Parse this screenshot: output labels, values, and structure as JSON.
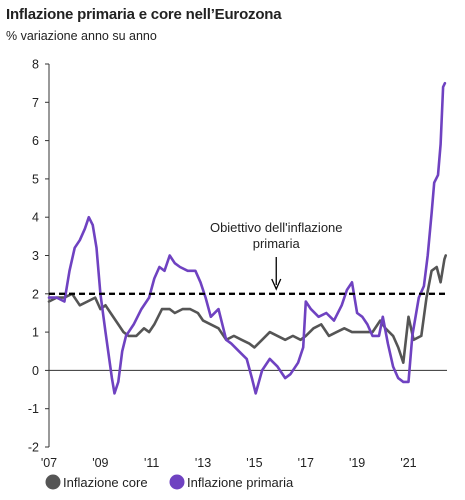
{
  "colors": {
    "core": "#555555",
    "headline": "#6f42c1",
    "target": "#000000"
  },
  "chart_data": {
    "type": "line",
    "title": "Inflazione primaria e core nell’Eurozona",
    "subtitle": "% variazione anno su anno",
    "xlabel": "",
    "ylabel": "",
    "xlim": [
      2007.0,
      2022.5
    ],
    "ylim": [
      -2,
      8
    ],
    "yticks": [
      "-2",
      "-1",
      "0",
      "1",
      "2",
      "3",
      "4",
      "5",
      "6",
      "7",
      "8"
    ],
    "xticks": [
      {
        "x": 2007.0,
        "label": "'07"
      },
      {
        "x": 2009.0,
        "label": "'09"
      },
      {
        "x": 2011.0,
        "label": "'11"
      },
      {
        "x": 2013.0,
        "label": "'13"
      },
      {
        "x": 2015.0,
        "label": "'15"
      },
      {
        "x": 2017.0,
        "label": "'17"
      },
      {
        "x": 2019.0,
        "label": "'19"
      },
      {
        "x": 2021.0,
        "label": "'21"
      }
    ],
    "reference_line": {
      "y": 2,
      "style": "dashed"
    },
    "annotation": {
      "lines": [
        "Obiettivo dell'inflazione",
        "primaria"
      ],
      "x": 2015.85
    },
    "legend": {
      "position": "bottom"
    },
    "series": [
      {
        "name": "Inflazione core",
        "color_key": "core",
        "points": [
          [
            2007.0,
            1.8
          ],
          [
            2007.3,
            1.9
          ],
          [
            2007.6,
            1.9
          ],
          [
            2007.9,
            2.0
          ],
          [
            2008.2,
            1.7
          ],
          [
            2008.5,
            1.8
          ],
          [
            2008.8,
            1.9
          ],
          [
            2009.0,
            1.6
          ],
          [
            2009.2,
            1.7
          ],
          [
            2009.4,
            1.5
          ],
          [
            2009.7,
            1.2
          ],
          [
            2009.9,
            1.0
          ],
          [
            2010.1,
            0.9
          ],
          [
            2010.4,
            0.9
          ],
          [
            2010.7,
            1.1
          ],
          [
            2010.9,
            1.0
          ],
          [
            2011.1,
            1.2
          ],
          [
            2011.4,
            1.6
          ],
          [
            2011.7,
            1.6
          ],
          [
            2011.9,
            1.5
          ],
          [
            2012.2,
            1.6
          ],
          [
            2012.5,
            1.6
          ],
          [
            2012.8,
            1.5
          ],
          [
            2013.0,
            1.3
          ],
          [
            2013.3,
            1.2
          ],
          [
            2013.6,
            1.1
          ],
          [
            2013.9,
            0.8
          ],
          [
            2014.2,
            0.9
          ],
          [
            2014.5,
            0.8
          ],
          [
            2014.8,
            0.7
          ],
          [
            2015.0,
            0.6
          ],
          [
            2015.3,
            0.8
          ],
          [
            2015.6,
            1.0
          ],
          [
            2015.9,
            0.9
          ],
          [
            2016.2,
            0.8
          ],
          [
            2016.5,
            0.9
          ],
          [
            2016.8,
            0.8
          ],
          [
            2017.0,
            0.9
          ],
          [
            2017.3,
            1.1
          ],
          [
            2017.6,
            1.2
          ],
          [
            2017.9,
            0.9
          ],
          [
            2018.2,
            1.0
          ],
          [
            2018.5,
            1.1
          ],
          [
            2018.8,
            1.0
          ],
          [
            2019.0,
            1.0
          ],
          [
            2019.3,
            1.0
          ],
          [
            2019.6,
            1.0
          ],
          [
            2019.9,
            1.3
          ],
          [
            2020.1,
            1.1
          ],
          [
            2020.4,
            0.9
          ],
          [
            2020.6,
            0.6
          ],
          [
            2020.8,
            0.2
          ],
          [
            2021.0,
            1.4
          ],
          [
            2021.2,
            0.8
          ],
          [
            2021.5,
            0.9
          ],
          [
            2021.7,
            1.9
          ],
          [
            2021.9,
            2.6
          ],
          [
            2022.1,
            2.7
          ],
          [
            2022.25,
            2.3
          ],
          [
            2022.4,
            2.9
          ],
          [
            2022.45,
            3.0
          ]
        ]
      },
      {
        "name": "Inflazione primaria",
        "color_key": "headline",
        "points": [
          [
            2007.0,
            1.9
          ],
          [
            2007.3,
            1.9
          ],
          [
            2007.6,
            1.8
          ],
          [
            2007.8,
            2.6
          ],
          [
            2008.0,
            3.2
          ],
          [
            2008.2,
            3.4
          ],
          [
            2008.4,
            3.7
          ],
          [
            2008.55,
            4.0
          ],
          [
            2008.7,
            3.8
          ],
          [
            2008.85,
            3.2
          ],
          [
            2009.0,
            2.0
          ],
          [
            2009.2,
            1.0
          ],
          [
            2009.45,
            -0.2
          ],
          [
            2009.55,
            -0.6
          ],
          [
            2009.7,
            -0.3
          ],
          [
            2009.85,
            0.5
          ],
          [
            2010.0,
            0.9
          ],
          [
            2010.3,
            1.2
          ],
          [
            2010.6,
            1.6
          ],
          [
            2010.9,
            1.9
          ],
          [
            2011.1,
            2.4
          ],
          [
            2011.3,
            2.7
          ],
          [
            2011.5,
            2.6
          ],
          [
            2011.7,
            3.0
          ],
          [
            2011.9,
            2.8
          ],
          [
            2012.1,
            2.7
          ],
          [
            2012.4,
            2.6
          ],
          [
            2012.7,
            2.6
          ],
          [
            2012.9,
            2.3
          ],
          [
            2013.1,
            1.9
          ],
          [
            2013.3,
            1.4
          ],
          [
            2013.6,
            1.6
          ],
          [
            2013.9,
            0.8
          ],
          [
            2014.1,
            0.7
          ],
          [
            2014.4,
            0.5
          ],
          [
            2014.7,
            0.3
          ],
          [
            2014.9,
            -0.2
          ],
          [
            2015.05,
            -0.6
          ],
          [
            2015.3,
            0.0
          ],
          [
            2015.6,
            0.3
          ],
          [
            2015.9,
            0.1
          ],
          [
            2016.2,
            -0.2
          ],
          [
            2016.4,
            -0.1
          ],
          [
            2016.7,
            0.2
          ],
          [
            2016.9,
            0.6
          ],
          [
            2017.0,
            1.8
          ],
          [
            2017.2,
            1.6
          ],
          [
            2017.5,
            1.4
          ],
          [
            2017.8,
            1.5
          ],
          [
            2017.95,
            1.4
          ],
          [
            2018.1,
            1.3
          ],
          [
            2018.4,
            1.7
          ],
          [
            2018.6,
            2.1
          ],
          [
            2018.8,
            2.3
          ],
          [
            2019.0,
            1.5
          ],
          [
            2019.2,
            1.4
          ],
          [
            2019.4,
            1.2
          ],
          [
            2019.6,
            0.9
          ],
          [
            2019.85,
            0.9
          ],
          [
            2020.0,
            1.4
          ],
          [
            2020.2,
            0.7
          ],
          [
            2020.4,
            0.1
          ],
          [
            2020.6,
            -0.2
          ],
          [
            2020.8,
            -0.3
          ],
          [
            2021.0,
            -0.3
          ],
          [
            2021.15,
            0.9
          ],
          [
            2021.4,
            1.9
          ],
          [
            2021.6,
            2.2
          ],
          [
            2021.75,
            3.0
          ],
          [
            2021.9,
            4.1
          ],
          [
            2022.0,
            4.9
          ],
          [
            2022.15,
            5.1
          ],
          [
            2022.25,
            5.9
          ],
          [
            2022.35,
            7.4
          ],
          [
            2022.42,
            7.5
          ]
        ]
      }
    ]
  }
}
